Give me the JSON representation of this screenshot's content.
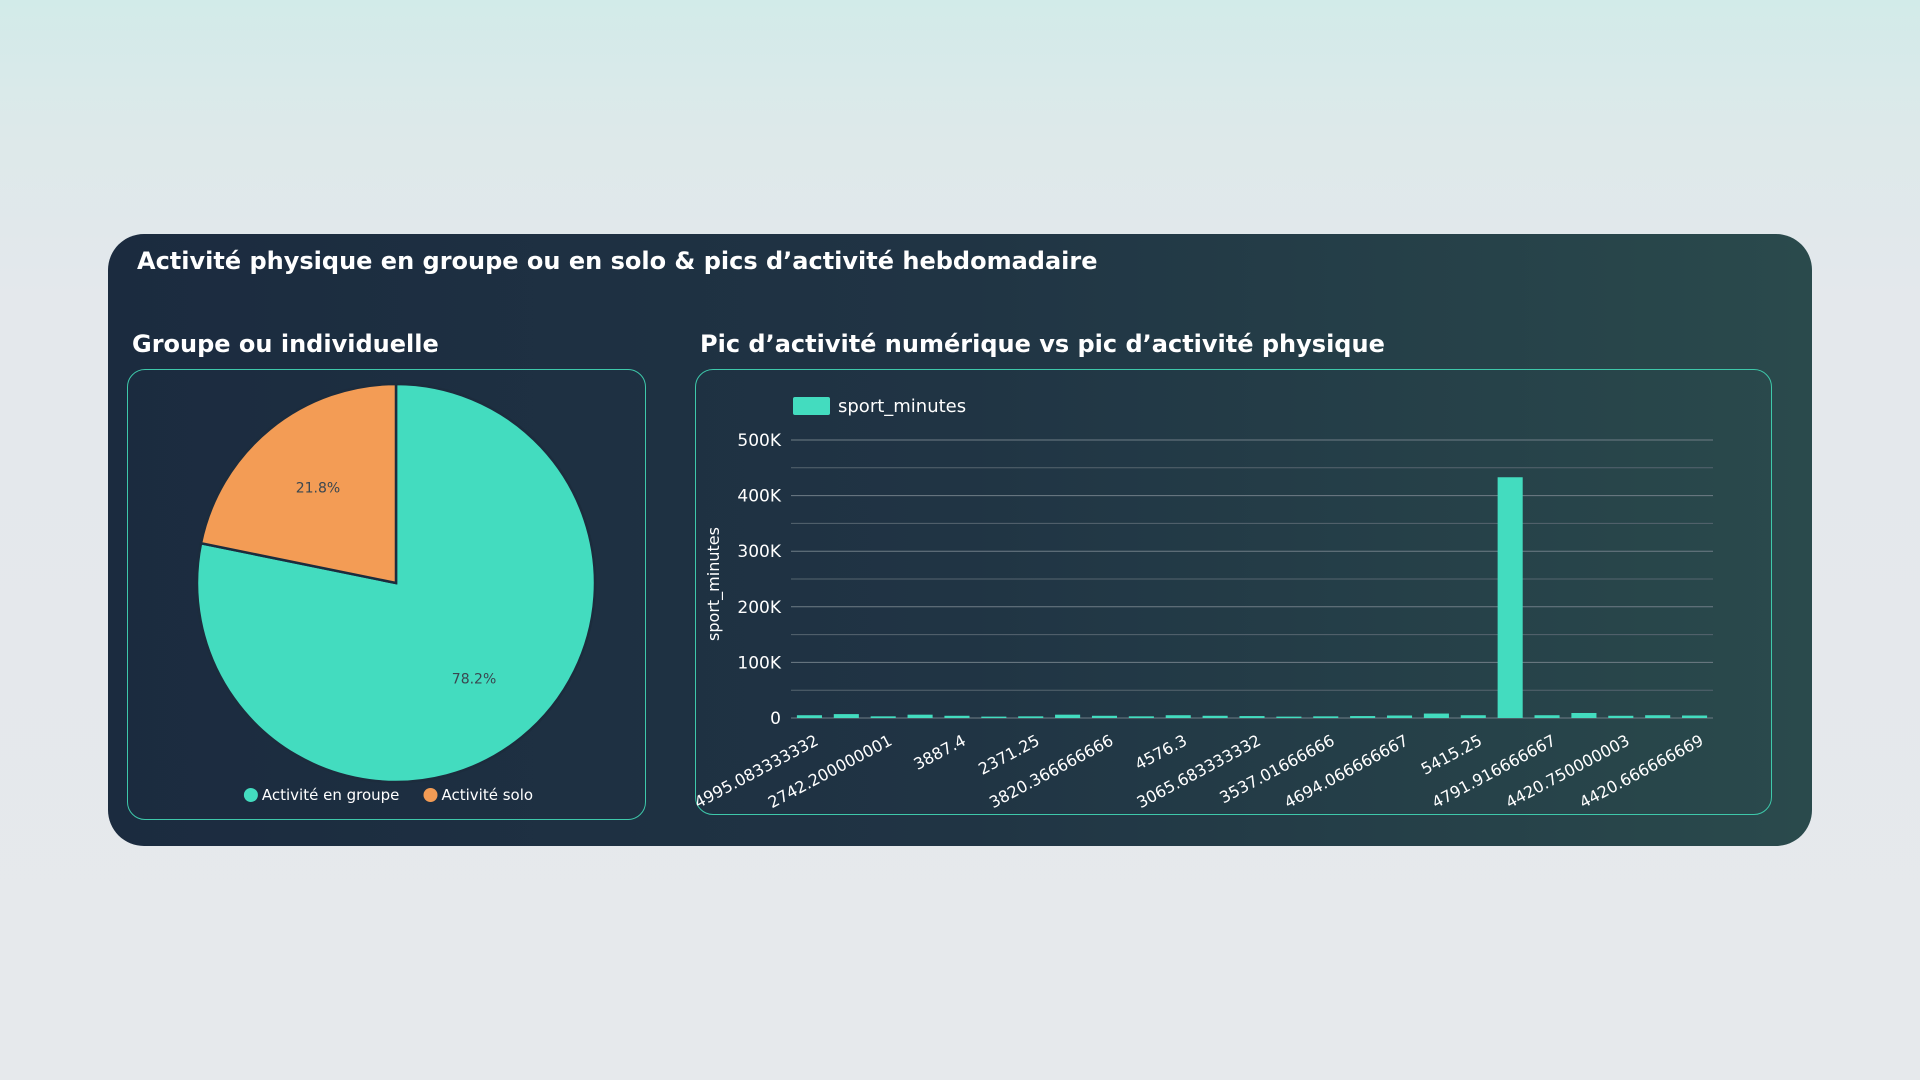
{
  "header": {
    "title": "Activité physique en groupe ou en solo & pics d’activité hebdomadaire"
  },
  "pie_section": {
    "title": "Groupe ou individuelle"
  },
  "bar_section": {
    "title": "Pic d’activité numérique vs pic d’activité physique"
  },
  "colors": {
    "accent": "#43dcbf",
    "orange": "#f39c55",
    "card_bg": "#1d2d40",
    "panel_border": "#3ec8aa"
  },
  "chart_data": [
    {
      "type": "pie",
      "slices": [
        {
          "label": "Activité en groupe",
          "value": 78.2,
          "display": "78.2%",
          "color": "#43dcbf"
        },
        {
          "label": "Activité solo",
          "value": 21.8,
          "display": "21.8%",
          "color": "#f39c55"
        }
      ],
      "legend_position": "bottom"
    },
    {
      "type": "bar",
      "legend": [
        "sport_minutes"
      ],
      "ylabel": "sport_minutes",
      "ylim": [
        0,
        500000
      ],
      "yticks": [
        "0",
        "100K",
        "200K",
        "300K",
        "400K",
        "500K"
      ],
      "grid": true,
      "legend_position": "top-left",
      "tick_labels": [
        "4995.083333332",
        "2742.200000001",
        "3887.4",
        "2371.25",
        "3820.366666666",
        "4576.3",
        "3065.683333332",
        "3537.01666666",
        "4694.066666667",
        "5415.25",
        "4791.916666667",
        "4420.750000003",
        "4420.666666669"
      ],
      "series": [
        {
          "name": "sport_minutes",
          "values": [
            5000,
            7000,
            3000,
            6000,
            4000,
            2500,
            3000,
            6000,
            4000,
            3000,
            5000,
            4000,
            3500,
            2500,
            3000,
            3500,
            4500,
            8000,
            5000,
            433000,
            5000,
            9000,
            4000,
            5000,
            4500
          ]
        }
      ]
    }
  ]
}
